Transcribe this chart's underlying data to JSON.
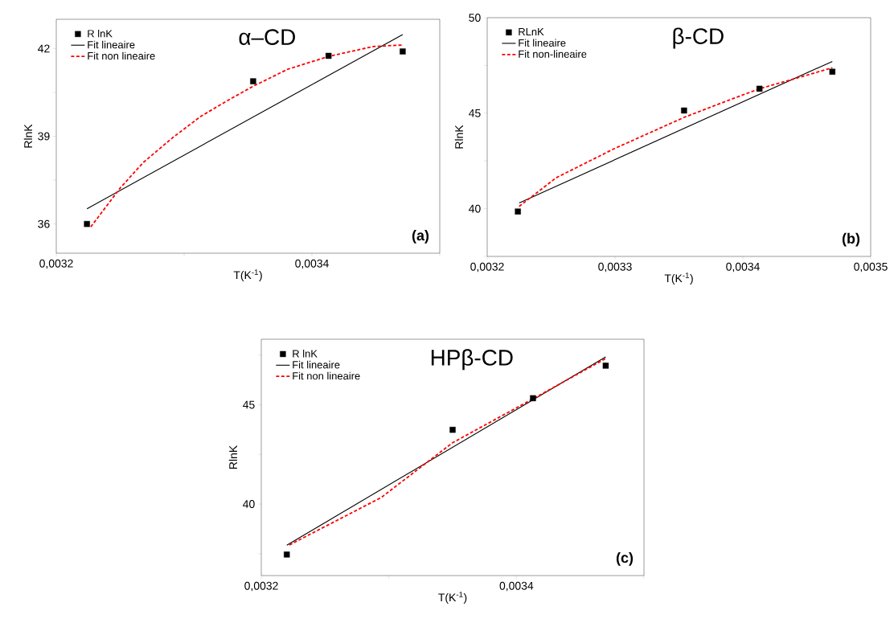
{
  "chart_data": [
    {
      "type": "scatter",
      "title": "α–CD",
      "xlabel": "T(K$^{-1}$)",
      "ylabel": "RlnK",
      "annotations": [
        "**(a)**"
      ],
      "xlim": [
        0.0032,
        0.0035
      ],
      "ylim": [
        35,
        43
      ],
      "xticks": [
        {
          "value": 0.0032,
          "label": "0,0032"
        },
        {
          "value": 0.0033,
          "label": null
        },
        {
          "value": 0.0034,
          "label": "0,0034"
        },
        {
          "value": 0.0035,
          "label": null
        }
      ],
      "yticks": [
        {
          "value": 36,
          "label": "36"
        },
        {
          "value": 37.5,
          "label": null
        },
        {
          "value": 39,
          "label": "39"
        },
        {
          "value": 40.5,
          "label": null
        },
        {
          "value": 42,
          "label": "42"
        }
      ],
      "legend": "top left",
      "series": [
        {
          "name": "R  lnK",
          "marker": "square",
          "color": "#000000",
          "x": [
            0.003224,
            0.003354,
            0.003413,
            0.003471
          ],
          "values": [
            36.0,
            40.88,
            41.75,
            41.9
          ]
        },
        {
          "name": "Fit lineaire",
          "type": "line",
          "marker": "none",
          "line_style": "solid",
          "color": "#000000",
          "x": [
            0.003224,
            0.003471
          ],
          "values": [
            36.52,
            42.48
          ]
        },
        {
          "name": "Fit non lineaire",
          "type": "line",
          "marker": "none",
          "line_style": "dashed",
          "color": "#ff0000",
          "x": [
            0.003227,
            0.00325,
            0.003268,
            0.003291,
            0.003313,
            0.003336,
            0.003354,
            0.003381,
            0.003413,
            0.003448,
            0.003471
          ],
          "values": [
            35.9,
            37.23,
            38.1,
            38.95,
            39.68,
            40.27,
            40.71,
            41.29,
            41.73,
            42.07,
            42.12
          ]
        }
      ]
    },
    {
      "type": "scatter",
      "title": "β-CD",
      "xlabel": "T(K$^{-1}$)",
      "ylabel": "RlnK",
      "annotations": [
        "**(b)**"
      ],
      "xlim": [
        0.0032,
        0.0035
      ],
      "ylim": [
        37.5,
        50
      ],
      "xticks": [
        {
          "value": 0.0032,
          "label": "0,0032"
        },
        {
          "value": 0.0033,
          "label": "0,0033"
        },
        {
          "value": 0.0034,
          "label": "0,0034"
        },
        {
          "value": 0.0035,
          "label": "0,0035"
        }
      ],
      "yticks": [
        {
          "value": 37.5,
          "label": null
        },
        {
          "value": 40,
          "label": "40"
        },
        {
          "value": 42.5,
          "label": null
        },
        {
          "value": 45,
          "label": "45"
        },
        {
          "value": 47.5,
          "label": null
        },
        {
          "value": 50,
          "label": "50"
        }
      ],
      "legend": "top left",
      "series": [
        {
          "name": "RLnK",
          "marker": "square",
          "color": "#000000",
          "x": [
            0.003224,
            0.003354,
            0.003413,
            0.00347
          ],
          "values": [
            39.85,
            45.14,
            46.28,
            47.17
          ]
        },
        {
          "name": "Fit lineaire",
          "type": "line",
          "marker": "none",
          "line_style": "solid",
          "color": "#000000",
          "x": [
            0.003225,
            0.00347
          ],
          "values": [
            40.3,
            47.71
          ]
        },
        {
          "name": "Fit non-lineaire",
          "type": "line",
          "marker": "none",
          "line_style": "dashed",
          "color": "#ff0000",
          "x": [
            0.003225,
            0.003254,
            0.003299,
            0.003354,
            0.003389,
            0.003413,
            0.003445,
            0.00347
          ],
          "values": [
            40.12,
            41.62,
            43.13,
            44.78,
            45.68,
            46.28,
            46.89,
            47.38
          ]
        }
      ]
    },
    {
      "type": "scatter",
      "title": "HPβ-CD",
      "xlabel": "T(K$^{-1}$)",
      "ylabel": "RlnK",
      "annotations": [
        "**(c)**"
      ],
      "xlim": [
        0.0032,
        0.0035
      ],
      "ylim": [
        36.4,
        48.3
      ],
      "xticks": [
        {
          "value": 0.0032,
          "label": "0,0032"
        },
        {
          "value": 0.0033,
          "label": null
        },
        {
          "value": 0.0034,
          "label": "0,0034"
        },
        {
          "value": 0.0035,
          "label": null
        }
      ],
      "yticks": [
        {
          "value": 37.5,
          "label": null
        },
        {
          "value": 40,
          "label": "40"
        },
        {
          "value": 42.5,
          "label": null
        },
        {
          "value": 45,
          "label": "45"
        },
        {
          "value": 47.5,
          "label": null
        }
      ],
      "legend": "top left",
      "series": [
        {
          "name": "R lnK",
          "marker": "square",
          "color": "#000000",
          "x": [
            0.00322,
            0.00335,
            0.003413,
            0.00347
          ],
          "values": [
            37.46,
            43.74,
            45.33,
            46.97
          ]
        },
        {
          "name": "Fit lineaire",
          "type": "line",
          "marker": "none",
          "line_style": "solid",
          "color": "#000000",
          "x": [
            0.00322,
            0.00347
          ],
          "values": [
            37.93,
            47.41
          ]
        },
        {
          "name": "Fit non lineaire",
          "type": "line",
          "marker": "none",
          "line_style": "dashed",
          "color": "#ff0000",
          "x": [
            0.003222,
            0.003294,
            0.00335,
            0.003413,
            0.00347
          ],
          "values": [
            37.94,
            40.33,
            43.09,
            45.3,
            47.33
          ]
        }
      ]
    }
  ]
}
